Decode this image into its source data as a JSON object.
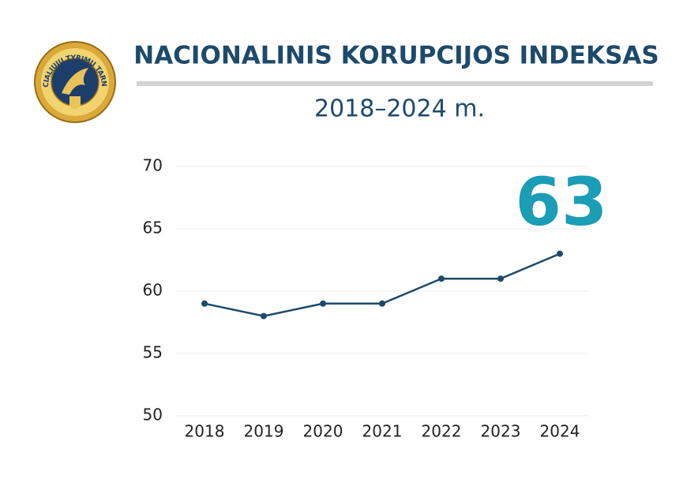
{
  "logo_text": "SPECIALIŲJŲ TYRIMŲ TARNYBA",
  "chart_data": {
    "type": "line",
    "title": "NACIONALINIS KORUPCIJOS INDEKSAS",
    "subtitle": "2018–2024 m.",
    "annotation": "63",
    "categories": [
      "2018",
      "2019",
      "2020",
      "2021",
      "2022",
      "2023",
      "2024"
    ],
    "values": [
      59,
      58,
      59,
      59,
      61,
      61,
      63
    ],
    "color": "#1d4a6b",
    "ylim": [
      50,
      70
    ],
    "yticks": [
      50,
      55,
      60,
      65,
      70
    ],
    "grid": true
  }
}
